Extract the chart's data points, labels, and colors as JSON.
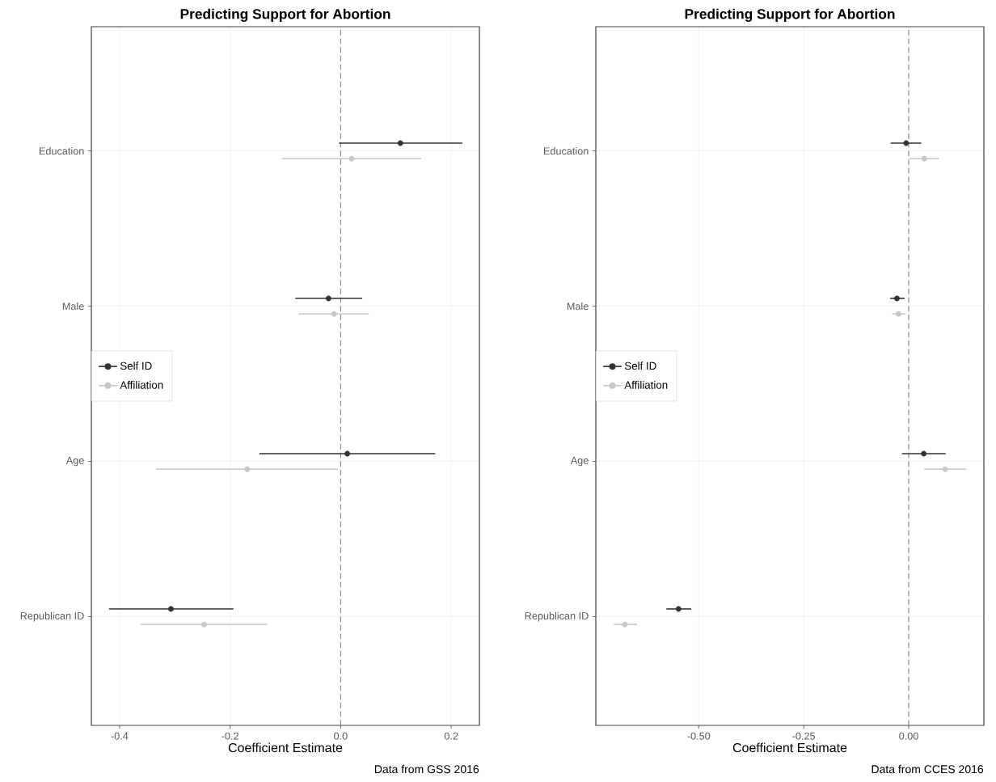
{
  "chart_data": [
    {
      "type": "scatter",
      "orientation": "horizontal",
      "title": "Predicting Support for Abortion",
      "xlabel": "Coefficient Estimate",
      "categories": [
        "Education",
        "Male",
        "Age",
        "Republican ID"
      ],
      "series": [
        {
          "name": "Self ID",
          "color": "#333333",
          "values": [
            0.108,
            -0.022,
            0.012,
            -0.307
          ],
          "errors": [
            [
              -0.003,
              0.22
            ],
            [
              -0.082,
              0.039
            ],
            [
              -0.147,
              0.171
            ],
            [
              -0.419,
              -0.194
            ]
          ]
        },
        {
          "name": "Affiliation",
          "color": "#c8c8c8",
          "values": [
            0.02,
            -0.012,
            -0.169,
            -0.247
          ],
          "errors": [
            [
              -0.106,
              0.146
            ],
            [
              -0.076,
              0.051
            ],
            [
              -0.334,
              -0.005
            ],
            [
              -0.362,
              -0.133
            ]
          ]
        }
      ],
      "xlim": [
        -0.451,
        0.251
      ],
      "xticks": [
        -0.4,
        -0.2,
        {
          "value": 0,
          "label": "0.0"
        },
        0.2
      ],
      "grid": true,
      "legend": "left",
      "marker": "circle",
      "ref_lines": [
        {
          "axis": "x",
          "value": 0,
          "color": "#808080",
          "line_style": "dashed"
        }
      ],
      "annotations": [
        "Data from GSS 2016"
      ]
    },
    {
      "type": "scatter",
      "orientation": "horizontal",
      "title": "Predicting Support for Abortion",
      "xlabel": "Coefficient Estimate",
      "categories": [
        "Education",
        "Male",
        "Age",
        "Republican ID"
      ],
      "series": [
        {
          "name": "Self ID",
          "color": "#333333",
          "values": [
            -0.006,
            -0.028,
            0.036,
            -0.548
          ],
          "errors": [
            [
              -0.043,
              0.03
            ],
            [
              -0.044,
              -0.01
            ],
            [
              -0.016,
              0.088
            ],
            [
              -0.577,
              -0.518
            ]
          ]
        },
        {
          "name": "Affiliation",
          "color": "#c8c8c8",
          "values": [
            0.037,
            -0.024,
            0.087,
            -0.676
          ],
          "errors": [
            [
              0.002,
              0.072
            ],
            [
              -0.039,
              -0.008
            ],
            [
              0.037,
              0.137
            ],
            [
              -0.702,
              -0.647
            ]
          ]
        }
      ],
      "xlim": [
        -0.745,
        0.179
      ],
      "xticks": [
        {
          "value": -0.5,
          "label": "-0.50"
        },
        {
          "value": -0.25,
          "label": "-0.25"
        },
        {
          "value": 0,
          "label": "0.00"
        }
      ],
      "grid": true,
      "legend": "left",
      "marker": "circle",
      "ref_lines": [
        {
          "axis": "x",
          "value": 0,
          "color": "#808080",
          "line_style": "dashed"
        }
      ],
      "annotations": [
        "Data from CCES 2016"
      ]
    }
  ]
}
